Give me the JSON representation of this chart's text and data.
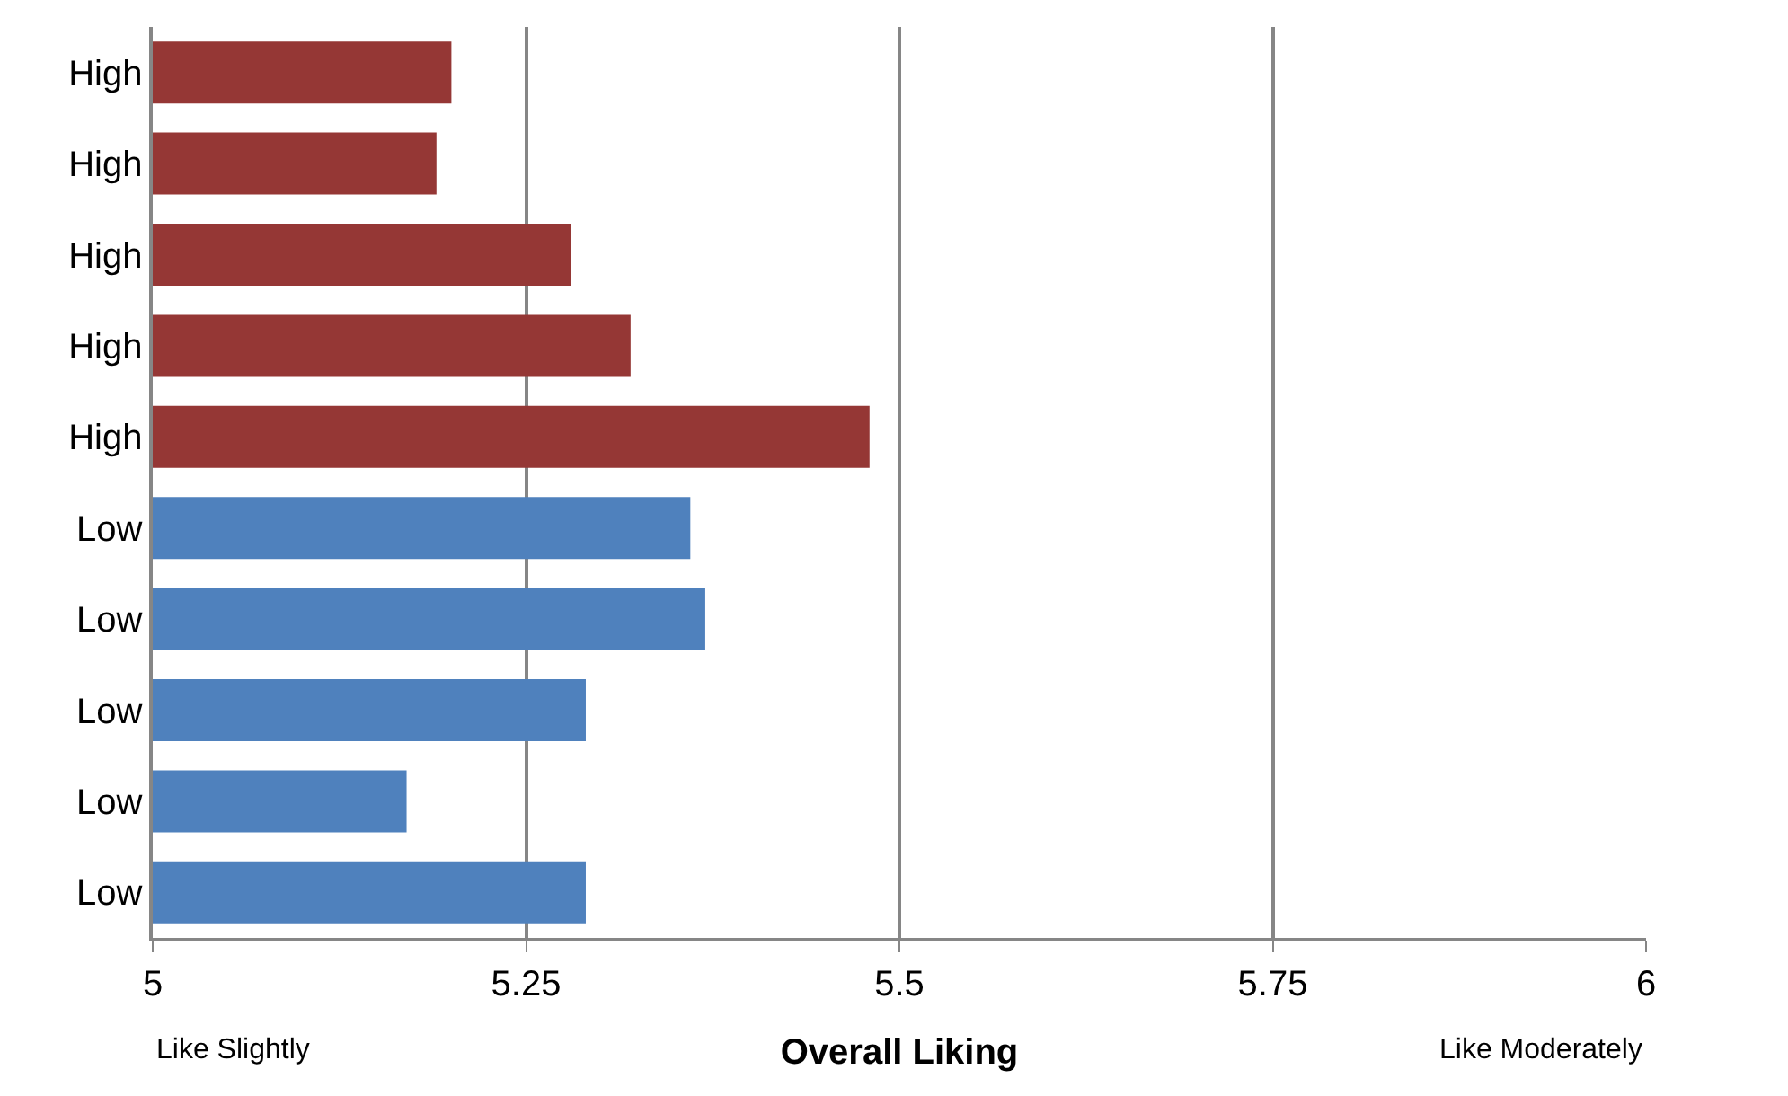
{
  "chart_data": {
    "type": "bar",
    "orientation": "horizontal",
    "categories": [
      "High",
      "High",
      "High",
      "High",
      "High",
      "Low",
      "Low",
      "Low",
      "Low",
      "Low"
    ],
    "values": [
      5.2,
      5.19,
      5.28,
      5.32,
      5.48,
      5.36,
      5.37,
      5.29,
      5.17,
      5.29
    ],
    "colors": [
      "#953735",
      "#953735",
      "#953735",
      "#953735",
      "#953735",
      "#4f81bd",
      "#4f81bd",
      "#4f81bd",
      "#4f81bd",
      "#4f81bd"
    ],
    "xlim": [
      5,
      6
    ],
    "xticks": [
      5,
      5.25,
      5.5,
      5.75,
      6
    ],
    "grid": "x",
    "xlabel": "Overall Liking",
    "annotations": [
      "Like Slightly",
      "Like Moderately"
    ]
  }
}
